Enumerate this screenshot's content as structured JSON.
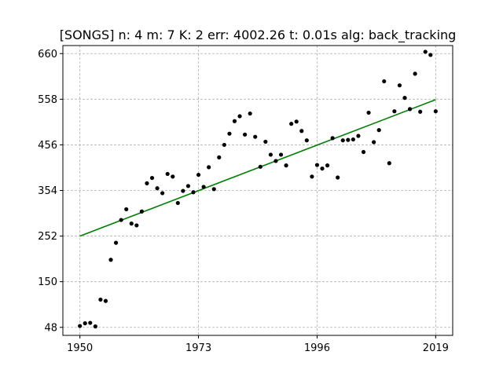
{
  "chart_data": {
    "type": "scatter",
    "title": "[SONGS] n: 4 m: 7 K: 2 err: 4002.26 t: 0.01s alg: back_tracking",
    "xlabel": "",
    "ylabel": "",
    "xlim": [
      1946.7,
      2022.3
    ],
    "ylim": [
      30.0,
      678.0
    ],
    "xticks": [
      1950,
      1973,
      1996,
      2019
    ],
    "yticks": [
      48,
      150,
      252,
      354,
      456,
      558,
      660
    ],
    "grid": true,
    "colors": {
      "points": "#000000",
      "fit": "#008000",
      "grid": "#b0b0b0"
    },
    "series": [
      {
        "kind": "scatter",
        "points": [
          [
            1950,
            51
          ],
          [
            1951,
            57
          ],
          [
            1952,
            58
          ],
          [
            1953,
            50
          ],
          [
            1954,
            110
          ],
          [
            1955,
            107
          ],
          [
            1956,
            199
          ],
          [
            1957,
            237
          ],
          [
            1958,
            288
          ],
          [
            1959,
            312
          ],
          [
            1960,
            280
          ],
          [
            1961,
            276
          ],
          [
            1962,
            307
          ],
          [
            1963,
            370
          ],
          [
            1964,
            382
          ],
          [
            1965,
            359
          ],
          [
            1966,
            348
          ],
          [
            1967,
            391
          ],
          [
            1968,
            385
          ],
          [
            1969,
            326
          ],
          [
            1970,
            353
          ],
          [
            1971,
            364
          ],
          [
            1972,
            350
          ],
          [
            1973,
            389
          ],
          [
            1974,
            362
          ],
          [
            1975,
            406
          ],
          [
            1976,
            357
          ],
          [
            1977,
            428
          ],
          [
            1978,
            456
          ],
          [
            1979,
            481
          ],
          [
            1980,
            509
          ],
          [
            1981,
            520
          ],
          [
            1982,
            479
          ],
          [
            1983,
            526
          ],
          [
            1984,
            474
          ],
          [
            1985,
            407
          ],
          [
            1986,
            463
          ],
          [
            1987,
            434
          ],
          [
            1988,
            420
          ],
          [
            1989,
            434
          ],
          [
            1990,
            410
          ],
          [
            1991,
            503
          ],
          [
            1992,
            508
          ],
          [
            1993,
            487
          ],
          [
            1994,
            466
          ],
          [
            1995,
            385
          ],
          [
            1996,
            411
          ],
          [
            1997,
            403
          ],
          [
            1998,
            410
          ],
          [
            1999,
            471
          ],
          [
            2000,
            383
          ],
          [
            2001,
            466
          ],
          [
            2002,
            467
          ],
          [
            2003,
            468
          ],
          [
            2004,
            476
          ],
          [
            2005,
            440
          ],
          [
            2006,
            528
          ],
          [
            2007,
            462
          ],
          [
            2008,
            489
          ],
          [
            2009,
            598
          ],
          [
            2010,
            415
          ],
          [
            2011,
            531
          ],
          [
            2012,
            589
          ],
          [
            2013,
            561
          ],
          [
            2014,
            536
          ],
          [
            2015,
            615
          ],
          [
            2016,
            530
          ],
          [
            2017,
            664
          ],
          [
            2018,
            657
          ],
          [
            2019,
            531
          ]
        ]
      },
      {
        "kind": "line",
        "points": [
          [
            1950,
            252
          ],
          [
            2019,
            557
          ]
        ]
      }
    ]
  }
}
